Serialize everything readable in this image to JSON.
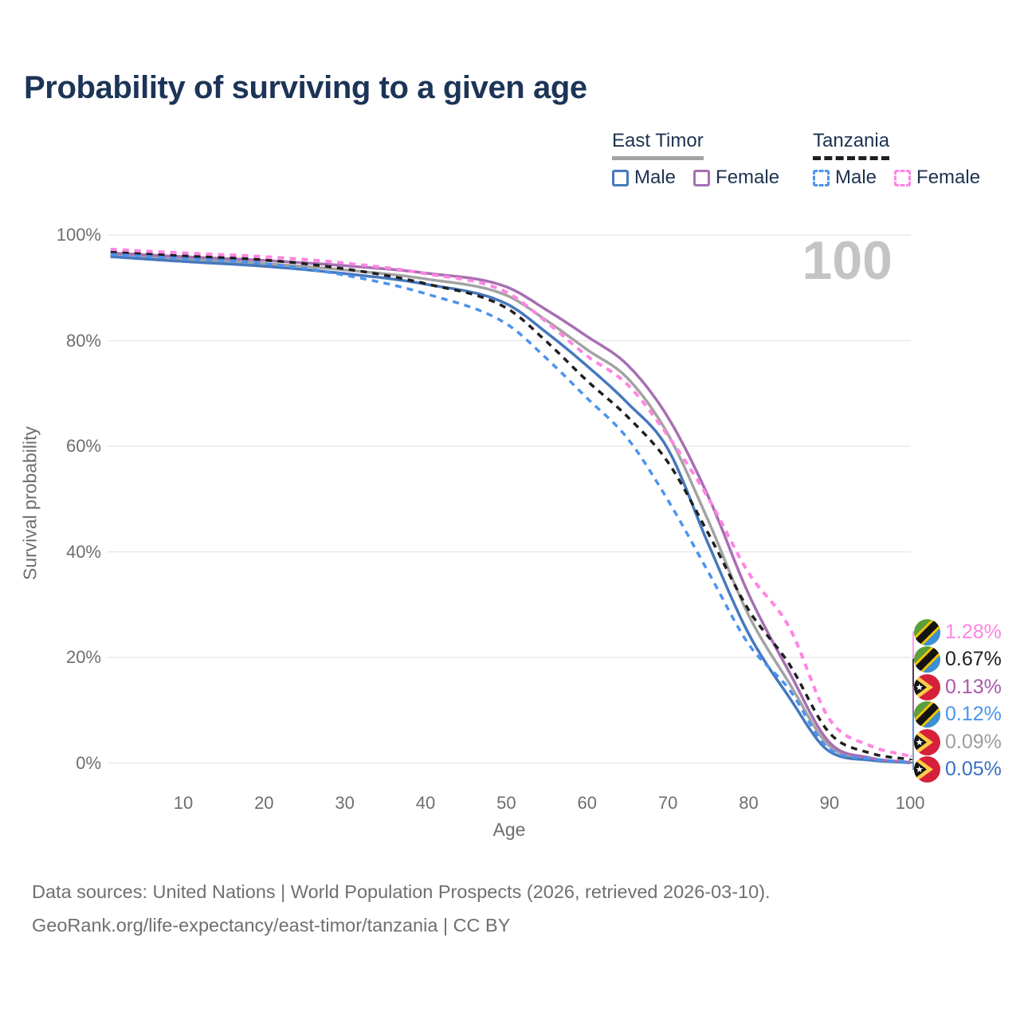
{
  "title": "Probability of surviving to a given age",
  "watermark": "100",
  "legend": {
    "groups": [
      {
        "name": "East Timor",
        "line_style": "solid",
        "group_line_color": "#a3a3a3",
        "items": [
          {
            "label": "Male",
            "color": "#4678bd"
          },
          {
            "label": "Female",
            "color": "#a76fb2"
          }
        ]
      },
      {
        "name": "Tanzania",
        "line_style": "dashed",
        "group_line_color": "#1f1f1f",
        "items": [
          {
            "label": "Male",
            "color": "#4a93f0"
          },
          {
            "label": "Female",
            "color": "#ff85e2"
          }
        ]
      }
    ]
  },
  "chart_data": {
    "type": "line",
    "title": "Probability of surviving to a given age",
    "xlabel": "Age",
    "ylabel": "Survival probability",
    "xlim": [
      0,
      100
    ],
    "ylim": [
      0,
      100
    ],
    "grid": "horizontal",
    "unit": "percent",
    "x_ticks": [
      10,
      20,
      30,
      40,
      50,
      60,
      70,
      80,
      90,
      100
    ],
    "y_ticks": [
      {
        "value": 0,
        "label": "0%"
      },
      {
        "value": 20,
        "label": "20%"
      },
      {
        "value": 40,
        "label": "40%"
      },
      {
        "value": 60,
        "label": "60%"
      },
      {
        "value": 80,
        "label": "80%"
      },
      {
        "value": 100,
        "label": "100%"
      }
    ],
    "x": [
      1,
      10,
      20,
      30,
      40,
      50,
      55,
      60,
      65,
      70,
      75,
      80,
      85,
      90,
      95,
      100
    ],
    "series": [
      {
        "id": "et_total",
        "name": "East Timor Both sexes",
        "country": "East Timor",
        "dashed": false,
        "color": "#a3a3a3",
        "width": 3.5,
        "values": [
          96.2,
          95.5,
          94.6,
          93.4,
          91.7,
          88.6,
          83.8,
          78.3,
          72.9,
          62.3,
          45.9,
          28.0,
          15.2,
          3.2,
          0.8,
          0.09
        ],
        "end_label": "0.09%"
      },
      {
        "id": "et_male",
        "name": "East Timor Male",
        "country": "East Timor",
        "dashed": false,
        "color": "#4678bd",
        "width": 3.5,
        "values": [
          95.9,
          95.0,
          94.1,
          92.7,
          90.7,
          87.0,
          81.5,
          75.2,
          68.2,
          59.5,
          41.5,
          24.5,
          12.5,
          2.2,
          0.55,
          0.05
        ],
        "end_label": "0.05%"
      },
      {
        "id": "et_female",
        "name": "East Timor Female",
        "country": "East Timor",
        "dashed": false,
        "color": "#a76fb2",
        "width": 3.5,
        "values": [
          96.6,
          95.9,
          95.2,
          94.2,
          92.8,
          90.2,
          85.8,
          80.8,
          75.4,
          65.5,
          50.5,
          32.0,
          17.3,
          3.9,
          1.0,
          0.13
        ],
        "end_label": "0.13%"
      },
      {
        "id": "tz_male",
        "name": "Tanzania Male",
        "country": "Tanzania",
        "dashed": true,
        "color": "#4a93f0",
        "width": 3.5,
        "values": [
          96.3,
          95.6,
          94.6,
          92.4,
          88.9,
          83.2,
          76.6,
          69.1,
          61.5,
          49.8,
          36.2,
          22.5,
          14.0,
          2.6,
          0.8,
          0.12
        ],
        "end_label": "0.12%"
      },
      {
        "id": "tz_total",
        "name": "Tanzania Both sexes",
        "country": "Tanzania",
        "dashed": true,
        "color": "#1f1f1f",
        "width": 3.5,
        "values": [
          96.9,
          96.1,
          95.3,
          93.6,
          90.8,
          86.2,
          79.8,
          72.4,
          65.6,
          57.0,
          43.5,
          29.0,
          18.8,
          5.7,
          1.9,
          0.67
        ],
        "end_label": "0.67%"
      },
      {
        "id": "tz_female",
        "name": "Tanzania Female",
        "country": "Tanzania",
        "dashed": true,
        "color": "#ff85e2",
        "width": 4,
        "values": [
          97.3,
          96.6,
          95.9,
          94.7,
          92.7,
          89.2,
          83.5,
          77.1,
          71.7,
          62.0,
          50.2,
          36.0,
          25.8,
          8.3,
          3.3,
          1.28
        ],
        "end_label": "1.28%"
      }
    ]
  },
  "end_labels": [
    {
      "value": "1.28%",
      "series": "tz_female",
      "flag": "tanzania",
      "text_color": "#ff85e2"
    },
    {
      "value": "0.67%",
      "series": "tz_total",
      "flag": "tanzania",
      "text_color": "#1f1f1f"
    },
    {
      "value": "0.13%",
      "series": "et_female",
      "flag": "east-timor",
      "text_color": "#aa58a8"
    },
    {
      "value": "0.12%",
      "series": "tz_male",
      "flag": "tanzania",
      "text_color": "#4a93f0"
    },
    {
      "value": "0.09%",
      "series": "et_total",
      "flag": "east-timor",
      "text_color": "#9c9c9c"
    },
    {
      "value": "0.05%",
      "series": "et_male",
      "flag": "east-timor",
      "text_color": "#3a6fc4"
    }
  ],
  "flags": {
    "tanzania": {
      "green": "#5d9e3c",
      "blue": "#3d8fd4",
      "yellow": "#f2c500",
      "black": "#141414"
    },
    "east-timor": {
      "red": "#d6203b",
      "yellow": "#ffcc47",
      "black": "#141414",
      "star": "#ffffff"
    }
  },
  "footer": {
    "line1": "Data sources: United Nations | World Population Prospects (2026, retrieved 2026-03-10).",
    "line2": "GeoRank.org/life-expectancy/east-timor/tanzania | CC BY"
  }
}
